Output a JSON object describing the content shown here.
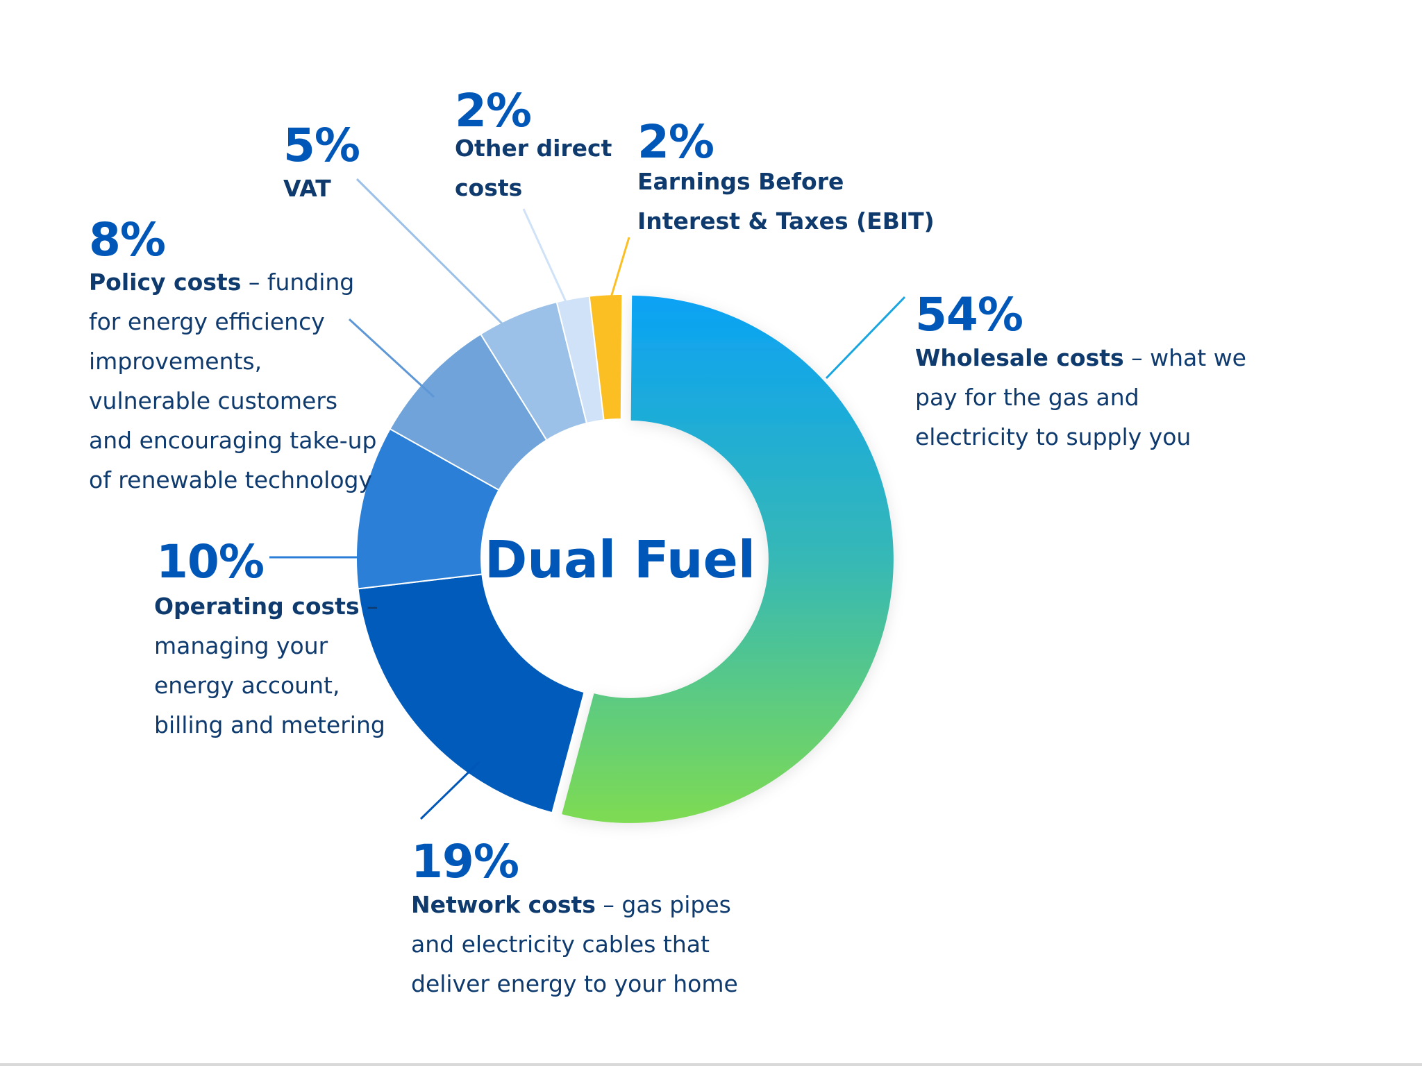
{
  "chart_data": {
    "type": "pie",
    "donut": true,
    "title": "Dual Fuel",
    "unit": "%",
    "slices": [
      {
        "value": 54,
        "value_label": "54%",
        "name": "Wholesale costs",
        "desc": " – what we pay for the gas and electricity to supply you",
        "lines": [
          {
            "bold": "Wholesale costs",
            "text": " – what we"
          },
          {
            "text": "pay for the gas and"
          },
          {
            "text": "electricity to supply you"
          }
        ],
        "color": "gradient:#0aa2f5-#7edb52"
      },
      {
        "value": 19,
        "value_label": "19%",
        "name": "Network costs",
        "desc": " – gas pipes and electricity cables that deliver energy to your home",
        "lines": [
          {
            "bold": "Network costs",
            "text": " – gas pipes"
          },
          {
            "text": "and electricity cables that"
          },
          {
            "text": "deliver energy to your home"
          }
        ],
        "color": "#005bbb"
      },
      {
        "value": 10,
        "value_label": "10%",
        "name": "Operating costs",
        "desc": " – managing your energy account, billing and metering",
        "lines": [
          {
            "bold": "Operating costs",
            "text": " –"
          },
          {
            "text": "managing your"
          },
          {
            "text": "energy account,"
          },
          {
            "text": "billing and metering"
          }
        ],
        "color": "#2b7fd6"
      },
      {
        "value": 8,
        "value_label": "8%",
        "name": "Policy costs",
        "desc": " – funding for energy efficiency improvements, vulnerable customers and encouraging take-up of renewable technology",
        "lines": [
          {
            "bold": "Policy costs",
            "text": " – funding"
          },
          {
            "text": "for energy efficiency"
          },
          {
            "text": "improvements,"
          },
          {
            "text": "vulnerable customers"
          },
          {
            "text": "and encouraging take-up"
          },
          {
            "text": "of renewable technology"
          }
        ],
        "color": "#6fa3da"
      },
      {
        "value": 5,
        "value_label": "5%",
        "name": "VAT",
        "desc": "",
        "lines": [
          {
            "bold": "VAT"
          }
        ],
        "color": "#9cc1e8"
      },
      {
        "value": 2,
        "value_label": "2%",
        "name": "Other direct costs",
        "desc": "",
        "lines": [
          {
            "bold": "Other direct"
          },
          {
            "bold": "costs"
          }
        ],
        "color": "#cfe2f7"
      },
      {
        "value": 2,
        "value_label": "2%",
        "name": "Earnings Before Interest & Taxes (EBIT)",
        "desc": "",
        "lines": [
          {
            "bold": "Earnings Before"
          },
          {
            "bold": "Interest & Taxes (EBIT)"
          }
        ],
        "color": "#fbbf24"
      }
    ],
    "legend": "callouts",
    "grid": false
  }
}
